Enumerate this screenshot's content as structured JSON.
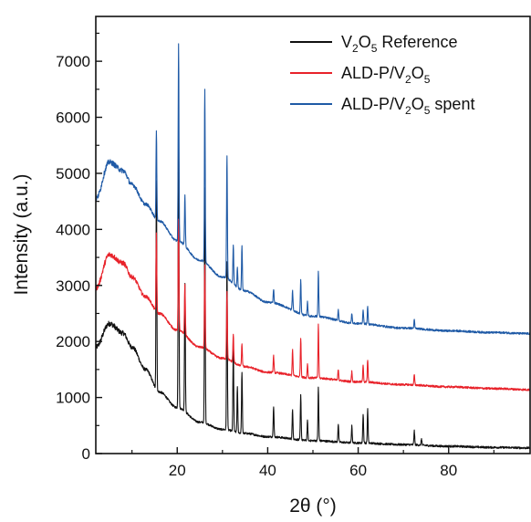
{
  "chart_data": {
    "type": "line",
    "xlabel": "2θ (°)",
    "ylabel": "Intensity (a.u.)",
    "xlim": [
      2,
      98
    ],
    "ylim": [
      0,
      7800
    ],
    "x_ticks": [
      20,
      40,
      60,
      80
    ],
    "y_ticks": [
      0,
      1000,
      2000,
      3000,
      4000,
      5000,
      6000,
      7000
    ],
    "grid": false,
    "legend_position": "top-right",
    "legend": [
      {
        "base": "V",
        "sub1": "2",
        "mid": "O",
        "sub2": "5",
        "tail": " Reference",
        "color": "#111111"
      },
      {
        "base": "ALD-P/V",
        "sub1": "2",
        "mid": "O",
        "sub2": "5",
        "tail": "",
        "color": "#e8222a"
      },
      {
        "base": "ALD-P/V",
        "sub1": "2",
        "mid": "O",
        "sub2": "5",
        "tail": " spent",
        "color": "#1f5aa6"
      }
    ],
    "series": [
      {
        "name": "V2O5 Reference",
        "color": "#111111",
        "baseline": [
          [
            2,
            1900
          ],
          [
            5,
            2320
          ],
          [
            8,
            2150
          ],
          [
            10,
            1900
          ],
          [
            13,
            1500
          ],
          [
            16,
            1100
          ],
          [
            20,
            820
          ],
          [
            25,
            560
          ],
          [
            30,
            430
          ],
          [
            35,
            360
          ],
          [
            40,
            300
          ],
          [
            50,
            230
          ],
          [
            60,
            190
          ],
          [
            70,
            160
          ],
          [
            80,
            130
          ],
          [
            90,
            110
          ],
          [
            98,
            100
          ]
        ],
        "peaks": [
          [
            15.4,
            3750
          ],
          [
            20.3,
            5100
          ],
          [
            21.7,
            2300
          ],
          [
            26.1,
            4200
          ],
          [
            31.0,
            3000
          ],
          [
            32.4,
            1500
          ],
          [
            33.3,
            800
          ],
          [
            34.3,
            1100
          ],
          [
            41.3,
            550
          ],
          [
            45.5,
            520
          ],
          [
            47.3,
            800
          ],
          [
            48.8,
            350
          ],
          [
            51.2,
            950
          ],
          [
            55.6,
            320
          ],
          [
            58.6,
            300
          ],
          [
            61.1,
            520
          ],
          [
            62.1,
            600
          ],
          [
            72.4,
            250
          ],
          [
            74.0,
            120
          ]
        ]
      },
      {
        "name": "ALD-P/V2O5",
        "color": "#e8222a",
        "baseline": [
          [
            2,
            2950
          ],
          [
            5,
            3550
          ],
          [
            8,
            3400
          ],
          [
            10,
            3150
          ],
          [
            13,
            2800
          ],
          [
            16,
            2500
          ],
          [
            20,
            2200
          ],
          [
            25,
            1900
          ],
          [
            30,
            1700
          ],
          [
            35,
            1550
          ],
          [
            40,
            1450
          ],
          [
            50,
            1350
          ],
          [
            60,
            1280
          ],
          [
            70,
            1230
          ],
          [
            80,
            1190
          ],
          [
            90,
            1160
          ],
          [
            98,
            1140
          ]
        ],
        "peaks": [
          [
            15.4,
            1400
          ],
          [
            20.3,
            2000
          ],
          [
            21.7,
            900
          ],
          [
            26.1,
            1500
          ],
          [
            31.0,
            1200
          ],
          [
            32.4,
            500
          ],
          [
            34.3,
            400
          ],
          [
            41.3,
            300
          ],
          [
            45.5,
            450
          ],
          [
            47.3,
            700
          ],
          [
            48.8,
            250
          ],
          [
            51.2,
            950
          ],
          [
            55.6,
            200
          ],
          [
            58.6,
            180
          ],
          [
            61.1,
            300
          ],
          [
            62.1,
            400
          ],
          [
            72.4,
            180
          ]
        ]
      },
      {
        "name": "ALD-P/V2O5 spent",
        "color": "#1f5aa6",
        "baseline": [
          [
            2,
            4550
          ],
          [
            5,
            5200
          ],
          [
            8,
            5050
          ],
          [
            10,
            4800
          ],
          [
            13,
            4450
          ],
          [
            16,
            4150
          ],
          [
            20,
            3800
          ],
          [
            25,
            3450
          ],
          [
            30,
            3150
          ],
          [
            35,
            2900
          ],
          [
            40,
            2700
          ],
          [
            50,
            2450
          ],
          [
            60,
            2320
          ],
          [
            70,
            2240
          ],
          [
            80,
            2190
          ],
          [
            90,
            2160
          ],
          [
            98,
            2140
          ]
        ],
        "peaks": [
          [
            15.4,
            1600
          ],
          [
            20.3,
            3500
          ],
          [
            21.7,
            900
          ],
          [
            26.1,
            3100
          ],
          [
            31.0,
            2200
          ],
          [
            32.4,
            700
          ],
          [
            33.3,
            350
          ],
          [
            34.3,
            800
          ],
          [
            41.3,
            250
          ],
          [
            45.5,
            350
          ],
          [
            47.3,
            600
          ],
          [
            48.8,
            250
          ],
          [
            51.2,
            800
          ],
          [
            55.6,
            200
          ],
          [
            58.6,
            180
          ],
          [
            61.1,
            250
          ],
          [
            62.1,
            300
          ],
          [
            72.4,
            150
          ]
        ]
      }
    ]
  }
}
